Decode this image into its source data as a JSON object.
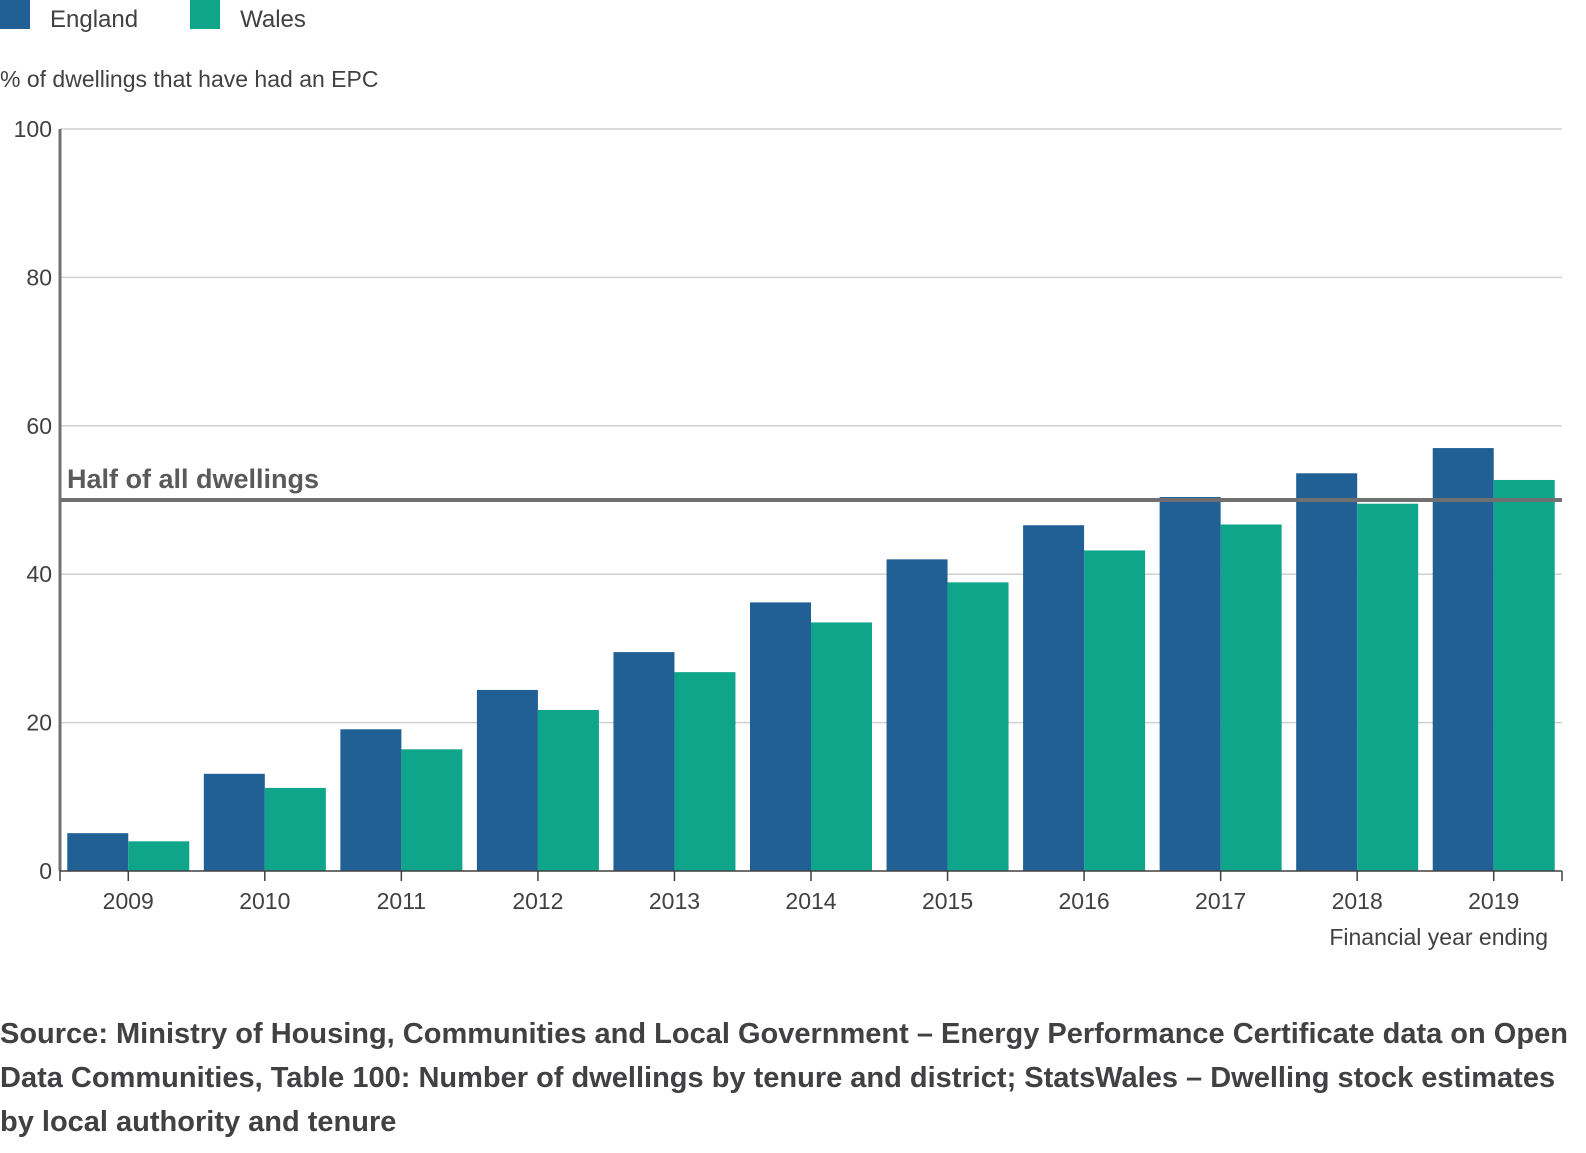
{
  "chart_data": {
    "type": "bar",
    "title": "",
    "ylabel": "% of dwellings that have had an EPC",
    "xlabel": "Financial year ending",
    "ylim": [
      0,
      100
    ],
    "yticks": [
      0,
      20,
      40,
      60,
      80,
      100
    ],
    "grid": true,
    "legend_position": "top-left",
    "categories": [
      "2009",
      "2010",
      "2011",
      "2012",
      "2013",
      "2014",
      "2015",
      "2016",
      "2017",
      "2018",
      "2019"
    ],
    "series": [
      {
        "name": "England",
        "color": "#206095",
        "values": [
          5.1,
          13.1,
          19.1,
          24.4,
          29.5,
          36.2,
          42.0,
          46.6,
          50.4,
          53.6,
          57.0
        ]
      },
      {
        "name": "Wales",
        "color": "#0ea58a",
        "values": [
          4.0,
          11.2,
          16.4,
          21.7,
          26.8,
          33.5,
          38.9,
          43.2,
          46.7,
          49.5,
          52.7
        ]
      }
    ],
    "reference_line": {
      "value": 50,
      "label": "Half of all dwellings",
      "color": "#707070"
    }
  },
  "source_text": "Source: Ministry of Housing, Communities and Local Government – Energy Performance Certificate data on Open Data Communities, Table 100: Number of dwellings by tenure and district; StatsWales – Dwelling stock estimates by local authority and tenure"
}
